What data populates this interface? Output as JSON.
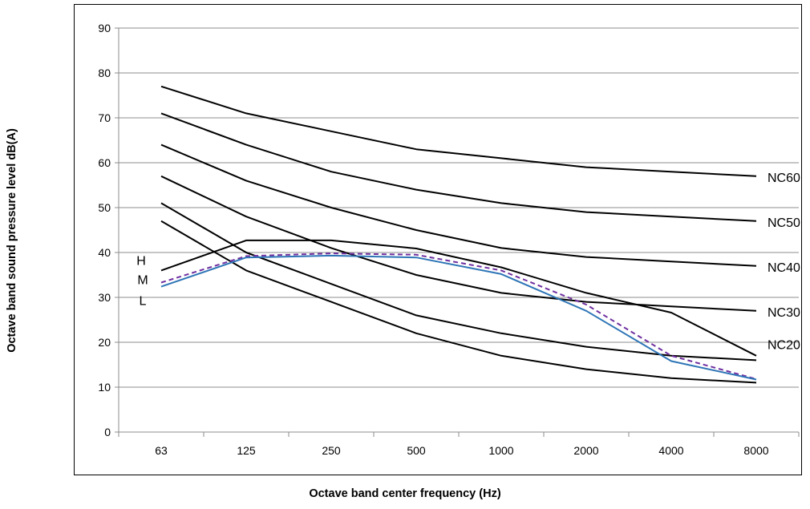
{
  "chart_data": {
    "type": "line",
    "xlabel": "Octave band center frequency (Hz)",
    "ylabel": "Octave band sound pressure level dB(A)",
    "categories": [
      "63",
      "125",
      "250",
      "500",
      "1000",
      "2000",
      "4000",
      "8000"
    ],
    "ylim": [
      0,
      90
    ],
    "yticks": [
      0,
      10,
      20,
      30,
      40,
      50,
      60,
      70,
      80,
      90
    ],
    "grid": "horizontal",
    "series": [
      {
        "name": "NC60",
        "values": [
          77,
          71,
          67,
          63,
          61,
          59,
          58,
          57
        ],
        "color": "#000000",
        "style": "solid"
      },
      {
        "name": "NC50",
        "values": [
          71,
          64,
          58,
          54,
          51,
          49,
          48,
          47
        ],
        "color": "#000000",
        "style": "solid"
      },
      {
        "name": "NC40",
        "values": [
          64,
          56,
          50,
          45,
          41,
          39,
          38,
          37
        ],
        "color": "#000000",
        "style": "solid"
      },
      {
        "name": "NC30",
        "values": [
          57,
          48,
          41,
          35,
          31,
          29,
          28,
          27
        ],
        "color": "#000000",
        "style": "solid"
      },
      {
        "name": "NC20",
        "values": [
          51,
          40,
          33,
          26,
          22,
          19,
          17,
          16
        ],
        "color": "#000000",
        "style": "solid"
      },
      {
        "name": "",
        "values": [
          47,
          36,
          29,
          22,
          17,
          14,
          12,
          11
        ],
        "color": "#000000",
        "style": "solid"
      },
      {
        "name": "H",
        "values": [
          36,
          42.7,
          42.7,
          40.9,
          36.7,
          31.0,
          26.6,
          17.0
        ],
        "color": "#000000",
        "style": "solid"
      },
      {
        "name": "M",
        "values": [
          33.3,
          39.2,
          39.8,
          39.5,
          36.0,
          28.4,
          17.0,
          11.8
        ],
        "color": "#7030a0",
        "style": "dashed"
      },
      {
        "name": "L",
        "values": [
          32.4,
          38.9,
          39.3,
          38.9,
          35.2,
          27.0,
          15.8,
          11.7
        ],
        "color": "#2e75b6",
        "style": "solid"
      }
    ]
  }
}
